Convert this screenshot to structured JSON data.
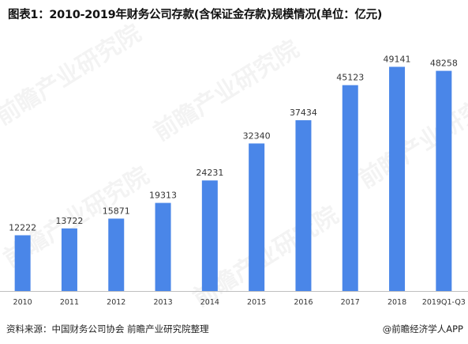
{
  "title": "图表1：2010-2019年财务公司存款(含保证金存款)规模情况(单位：亿元)",
  "source": "资料来源：中国财务公司协会 前瞻产业研究院整理",
  "brand": "@前瞻经济学人APP",
  "watermark": "前瞻产业研究院",
  "colors": {
    "bar": "#4a86e8",
    "axis": "#bfbfbf",
    "text": "#333333"
  },
  "chart_data": {
    "type": "bar",
    "categories": [
      "2010",
      "2011",
      "2012",
      "2013",
      "2014",
      "2015",
      "2016",
      "2017",
      "2018",
      "2019Q1-Q3"
    ],
    "values": [
      12222,
      13722,
      15871,
      19313,
      24231,
      32340,
      37434,
      45123,
      49141,
      48258
    ],
    "ylim": [
      0,
      52000
    ],
    "grid": false,
    "legend": "none"
  }
}
